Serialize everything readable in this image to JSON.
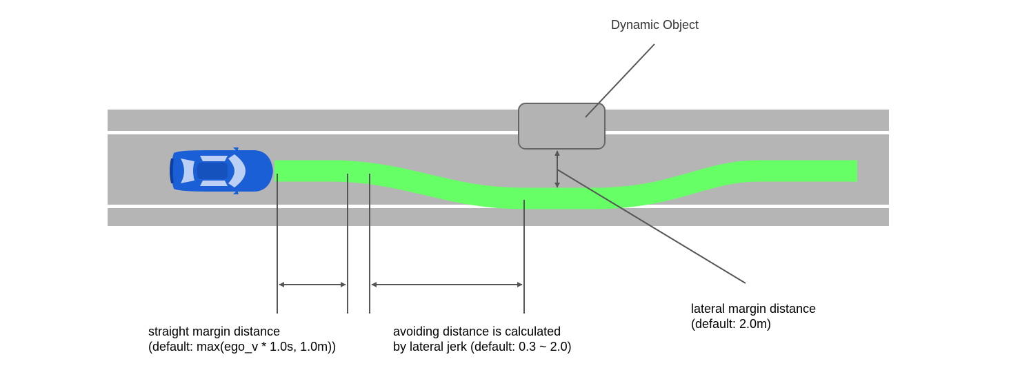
{
  "labels": {
    "dynamic_object": "Dynamic Object",
    "straight_margin": {
      "line1": "straight margin distance",
      "line2": "(default: max(ego_v * 1.0s,  1.0m))"
    },
    "avoiding_distance": {
      "line1": "avoiding distance is calculated",
      "line2": "by lateral jerk (default: 0.3 ~ 2.0)"
    },
    "lateral_margin": {
      "line1": "lateral margin distance",
      "line2": "(default: 2.0m)"
    }
  },
  "colors": {
    "road": "#b5b5b5",
    "lane_marking": "#ffffff",
    "path": "#66ff66",
    "object_fill": "#b3b3b3",
    "object_stroke": "#666666",
    "car_body": "#1a5fd6",
    "car_glass": "#bcd0f5",
    "annotation_line": "#555555"
  },
  "icons": {
    "ego_vehicle": "car-top-view-icon"
  }
}
